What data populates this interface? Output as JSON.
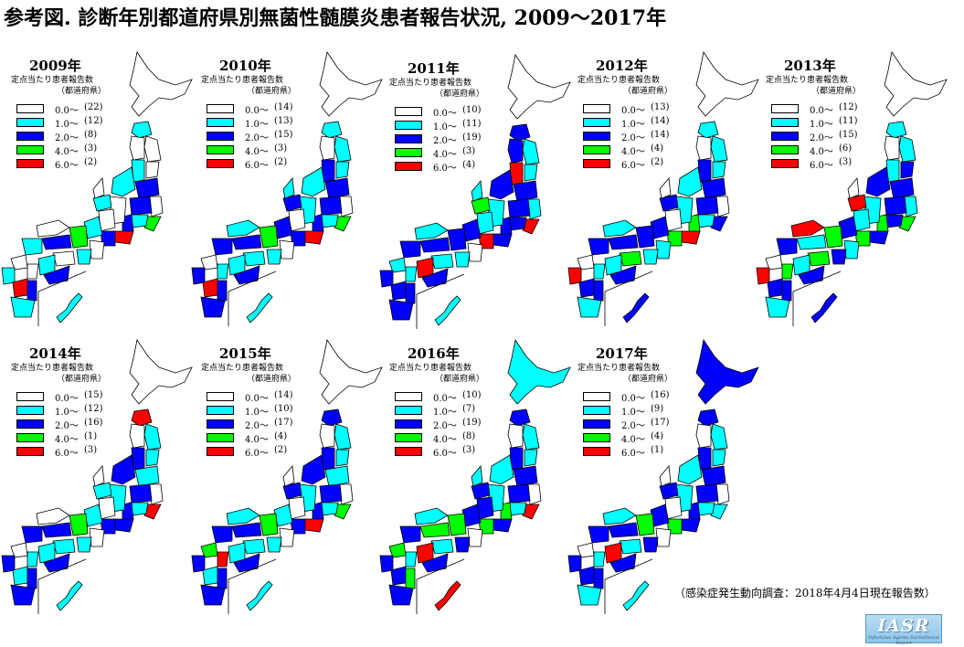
{
  "title": "参考図. 診断年別都道府県別無菌性髄膜炎患者報告状況, 2009〜2017年",
  "legend_title": "定点当たり患者報告数",
  "legend_subtitle": "（都道府県）",
  "colors": {
    "0.0": "#ffffff",
    "1.0": "#00ffff",
    "2.0": "#0000ff",
    "4.0": "#00ff00",
    "6.0": "#ff0000"
  },
  "ranges": [
    "0.0〜",
    "1.0〜",
    "2.0〜",
    "4.0〜",
    "6.0〜"
  ],
  "panels": [
    {
      "year": "2009年",
      "counts": [
        "(22)",
        "(12)",
        "(8)",
        "(3)",
        "(2)"
      ]
    },
    {
      "year": "2010年",
      "counts": [
        "(14)",
        "(13)",
        "(15)",
        "(3)",
        "(2)"
      ]
    },
    {
      "year": "2011年",
      "counts": [
        "(10)",
        "(11)",
        "(19)",
        "(3)",
        "(4)"
      ]
    },
    {
      "year": "2012年",
      "counts": [
        "(13)",
        "(14)",
        "(14)",
        "(4)",
        "(2)"
      ]
    },
    {
      "year": "2013年",
      "counts": [
        "(12)",
        "(11)",
        "(15)",
        "(6)",
        "(3)"
      ]
    },
    {
      "year": "2014年",
      "counts": [
        "(15)",
        "(12)",
        "(16)",
        "(1)",
        "(3)"
      ]
    },
    {
      "year": "2015年",
      "counts": [
        "(14)",
        "(10)",
        "(17)",
        "(4)",
        "(2)"
      ]
    },
    {
      "year": "2016年",
      "counts": [
        "(10)",
        "(7)",
        "(19)",
        "(8)",
        "(3)"
      ]
    },
    {
      "year": "2017年",
      "counts": [
        "(16)",
        "(9)",
        "(17)",
        "(4)",
        "(1)"
      ]
    }
  ],
  "source_note": "（感染症発生動向調査：2018年4月4日現在報告数）",
  "logo": {
    "text": "IASR",
    "subtext": "Infectious Agents Surveillance Report"
  }
}
